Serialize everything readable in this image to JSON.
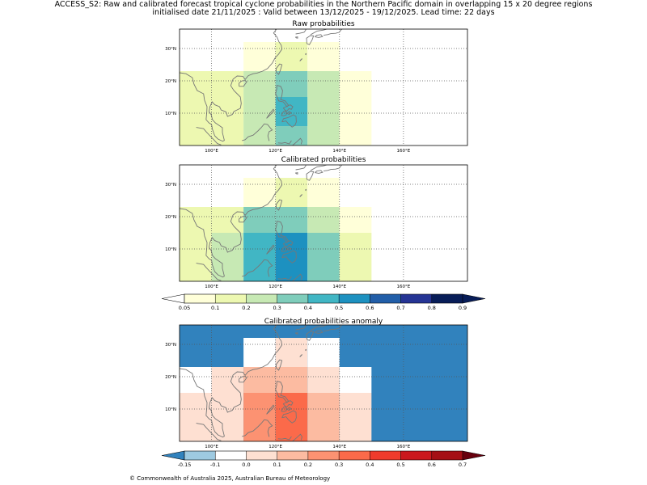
{
  "title_line1": "ACCESS_S2: Raw and calibrated forecast tropical cyclone probabilities in the Northern Pacific domain in overlapping 15 x 20 degree regions",
  "title_line2": "initialised date 21/11/2025 :  Valid between 13/12/2025 - 19/12/2025. Lead time: 22 days",
  "copyright": "© Commonwealth of Australia 2025, Australian Bureau of Meteorology",
  "colors": {
    "coast": "#777777",
    "grid": "#555555",
    "anomaly_background": "#3182bd"
  },
  "chart_data": [
    {
      "type": "heatmap",
      "title": "Raw probabilities",
      "x_ticks": [
        "100°E",
        "120°E",
        "140°E",
        "160°E"
      ],
      "y_ticks": [
        "10°N",
        "20°N",
        "30°N"
      ],
      "x_range": [
        90,
        180
      ],
      "y_range": [
        0,
        36
      ],
      "grid": true,
      "cells": [
        {
          "lon": [
            90,
            100
          ],
          "lat": [
            0,
            23
          ],
          "value": 0.1
        },
        {
          "lon": [
            100,
            110
          ],
          "lat": [
            0,
            15
          ],
          "value": 0.15
        },
        {
          "lon": [
            100,
            110
          ],
          "lat": [
            15,
            23
          ],
          "value": 0.1
        },
        {
          "lon": [
            110,
            120
          ],
          "lat": [
            0,
            15
          ],
          "value": 0.2
        },
        {
          "lon": [
            110,
            120
          ],
          "lat": [
            15,
            23
          ],
          "value": 0.2
        },
        {
          "lon": [
            110,
            120
          ],
          "lat": [
            23,
            32
          ],
          "value": 0.05
        },
        {
          "lon": [
            120,
            130
          ],
          "lat": [
            0,
            6
          ],
          "value": 0.35
        },
        {
          "lon": [
            120,
            130
          ],
          "lat": [
            6,
            15
          ],
          "value": 0.45
        },
        {
          "lon": [
            120,
            130
          ],
          "lat": [
            15,
            23
          ],
          "value": 0.35
        },
        {
          "lon": [
            120,
            130
          ],
          "lat": [
            23,
            32
          ],
          "value": 0.1
        },
        {
          "lon": [
            130,
            140
          ],
          "lat": [
            0,
            23
          ],
          "value": 0.2
        },
        {
          "lon": [
            130,
            140
          ],
          "lat": [
            23,
            32
          ],
          "value": 0.05
        },
        {
          "lon": [
            140,
            150
          ],
          "lat": [
            0,
            23
          ],
          "value": 0.05
        }
      ]
    },
    {
      "type": "heatmap",
      "title": "Calibrated probabilities",
      "x_ticks": [
        "100°E",
        "120°E",
        "140°E",
        "160°E"
      ],
      "y_ticks": [
        "10°N",
        "20°N",
        "30°N"
      ],
      "x_range": [
        90,
        180
      ],
      "y_range": [
        0,
        36
      ],
      "grid": true,
      "cells": [
        {
          "lon": [
            90,
            100
          ],
          "lat": [
            0,
            23
          ],
          "value": 0.1
        },
        {
          "lon": [
            100,
            110
          ],
          "lat": [
            0,
            15
          ],
          "value": 0.2
        },
        {
          "lon": [
            100,
            110
          ],
          "lat": [
            15,
            23
          ],
          "value": 0.1
        },
        {
          "lon": [
            110,
            120
          ],
          "lat": [
            0,
            15
          ],
          "value": 0.45
        },
        {
          "lon": [
            110,
            120
          ],
          "lat": [
            15,
            23
          ],
          "value": 0.35
        },
        {
          "lon": [
            110,
            120
          ],
          "lat": [
            23,
            32
          ],
          "value": 0.05
        },
        {
          "lon": [
            120,
            130
          ],
          "lat": [
            0,
            15
          ],
          "value": 0.55
        },
        {
          "lon": [
            120,
            130
          ],
          "lat": [
            15,
            23
          ],
          "value": 0.35
        },
        {
          "lon": [
            120,
            130
          ],
          "lat": [
            23,
            32
          ],
          "value": 0.1
        },
        {
          "lon": [
            130,
            140
          ],
          "lat": [
            0,
            15
          ],
          "value": 0.35
        },
        {
          "lon": [
            130,
            140
          ],
          "lat": [
            15,
            23
          ],
          "value": 0.2
        },
        {
          "lon": [
            130,
            140
          ],
          "lat": [
            23,
            32
          ],
          "value": 0.05
        },
        {
          "lon": [
            140,
            150
          ],
          "lat": [
            0,
            15
          ],
          "value": 0.1
        },
        {
          "lon": [
            140,
            150
          ],
          "lat": [
            15,
            23
          ],
          "value": 0.05
        }
      ]
    },
    {
      "type": "heatmap",
      "title": "Calibrated probabilities anomaly",
      "x_ticks": [
        "100°E",
        "120°E",
        "140°E",
        "160°E"
      ],
      "y_ticks": [
        "10°N",
        "20°N",
        "30°N"
      ],
      "x_range": [
        90,
        180
      ],
      "y_range": [
        0,
        36
      ],
      "grid": true,
      "background_value": -0.2,
      "cells": [
        {
          "lon": [
            90,
            100
          ],
          "lat": [
            15,
            23
          ],
          "value": -0.1
        },
        {
          "lon": [
            90,
            100
          ],
          "lat": [
            0,
            15
          ],
          "value": 0.0
        },
        {
          "lon": [
            100,
            110
          ],
          "lat": [
            0,
            15
          ],
          "value": 0.05
        },
        {
          "lon": [
            100,
            110
          ],
          "lat": [
            15,
            23
          ],
          "value": 0.0
        },
        {
          "lon": [
            110,
            120
          ],
          "lat": [
            0,
            15
          ],
          "value": 0.2
        },
        {
          "lon": [
            110,
            120
          ],
          "lat": [
            15,
            23
          ],
          "value": 0.15
        },
        {
          "lon": [
            110,
            120
          ],
          "lat": [
            23,
            32
          ],
          "value": -0.1
        },
        {
          "lon": [
            120,
            130
          ],
          "lat": [
            0,
            15
          ],
          "value": 0.35
        },
        {
          "lon": [
            120,
            130
          ],
          "lat": [
            15,
            23
          ],
          "value": 0.15
        },
        {
          "lon": [
            120,
            130
          ],
          "lat": [
            23,
            32
          ],
          "value": 0.0
        },
        {
          "lon": [
            130,
            140
          ],
          "lat": [
            0,
            15
          ],
          "value": 0.15
        },
        {
          "lon": [
            130,
            140
          ],
          "lat": [
            15,
            23
          ],
          "value": 0.05
        },
        {
          "lon": [
            130,
            140
          ],
          "lat": [
            23,
            32
          ],
          "value": -0.1
        },
        {
          "lon": [
            140,
            150
          ],
          "lat": [
            0,
            15
          ],
          "value": 0.0
        },
        {
          "lon": [
            140,
            150
          ],
          "lat": [
            15,
            23
          ],
          "value": -0.1
        }
      ]
    }
  ],
  "colorbars": [
    {
      "name": "probability",
      "tick_labels": [
        "0.05",
        "0.1",
        "0.2",
        "0.3",
        "0.4",
        "0.5",
        "0.6",
        "0.7",
        "0.8",
        "0.9"
      ],
      "under_color": "#ffffff",
      "over_color": "#081d58",
      "colors": [
        "#ffffd9",
        "#edf8b1",
        "#c7e9b4",
        "#7fcdbb",
        "#41b6c4",
        "#1d91c0",
        "#225ea8",
        "#253494",
        "#081d58"
      ]
    },
    {
      "name": "anomaly",
      "tick_labels": [
        "-0.15",
        "-0.1",
        "0.0",
        "0.1",
        "0.2",
        "0.3",
        "0.4",
        "0.5",
        "0.6",
        "0.7"
      ],
      "under_color": "#3182bd",
      "over_color": "#67000d",
      "colors": [
        "#9ecae1",
        "#ffffff",
        "#fee0d2",
        "#fcbba1",
        "#fc9272",
        "#fb6a4a",
        "#ef3b2c",
        "#cb181d",
        "#a50f15"
      ]
    }
  ]
}
